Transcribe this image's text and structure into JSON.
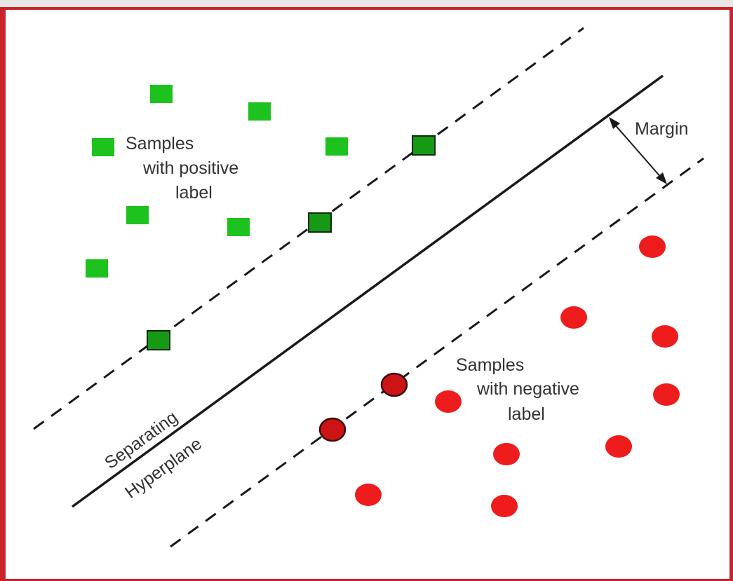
{
  "diagram": {
    "positive_label": [
      "Samples",
      "with positive",
      "label"
    ],
    "negative_label": [
      "Samples",
      "with negative",
      "label"
    ],
    "margin_label": "Margin",
    "hyperplane_label": [
      "Separating",
      "Hyperplane"
    ],
    "colors": {
      "positive": "#1ec21e",
      "positive_support": "#169a16",
      "negative": "#ee1c1c",
      "negative_support": "#cc1414",
      "line": "#1a1a1a",
      "frame_border": "#c8242c"
    }
  }
}
